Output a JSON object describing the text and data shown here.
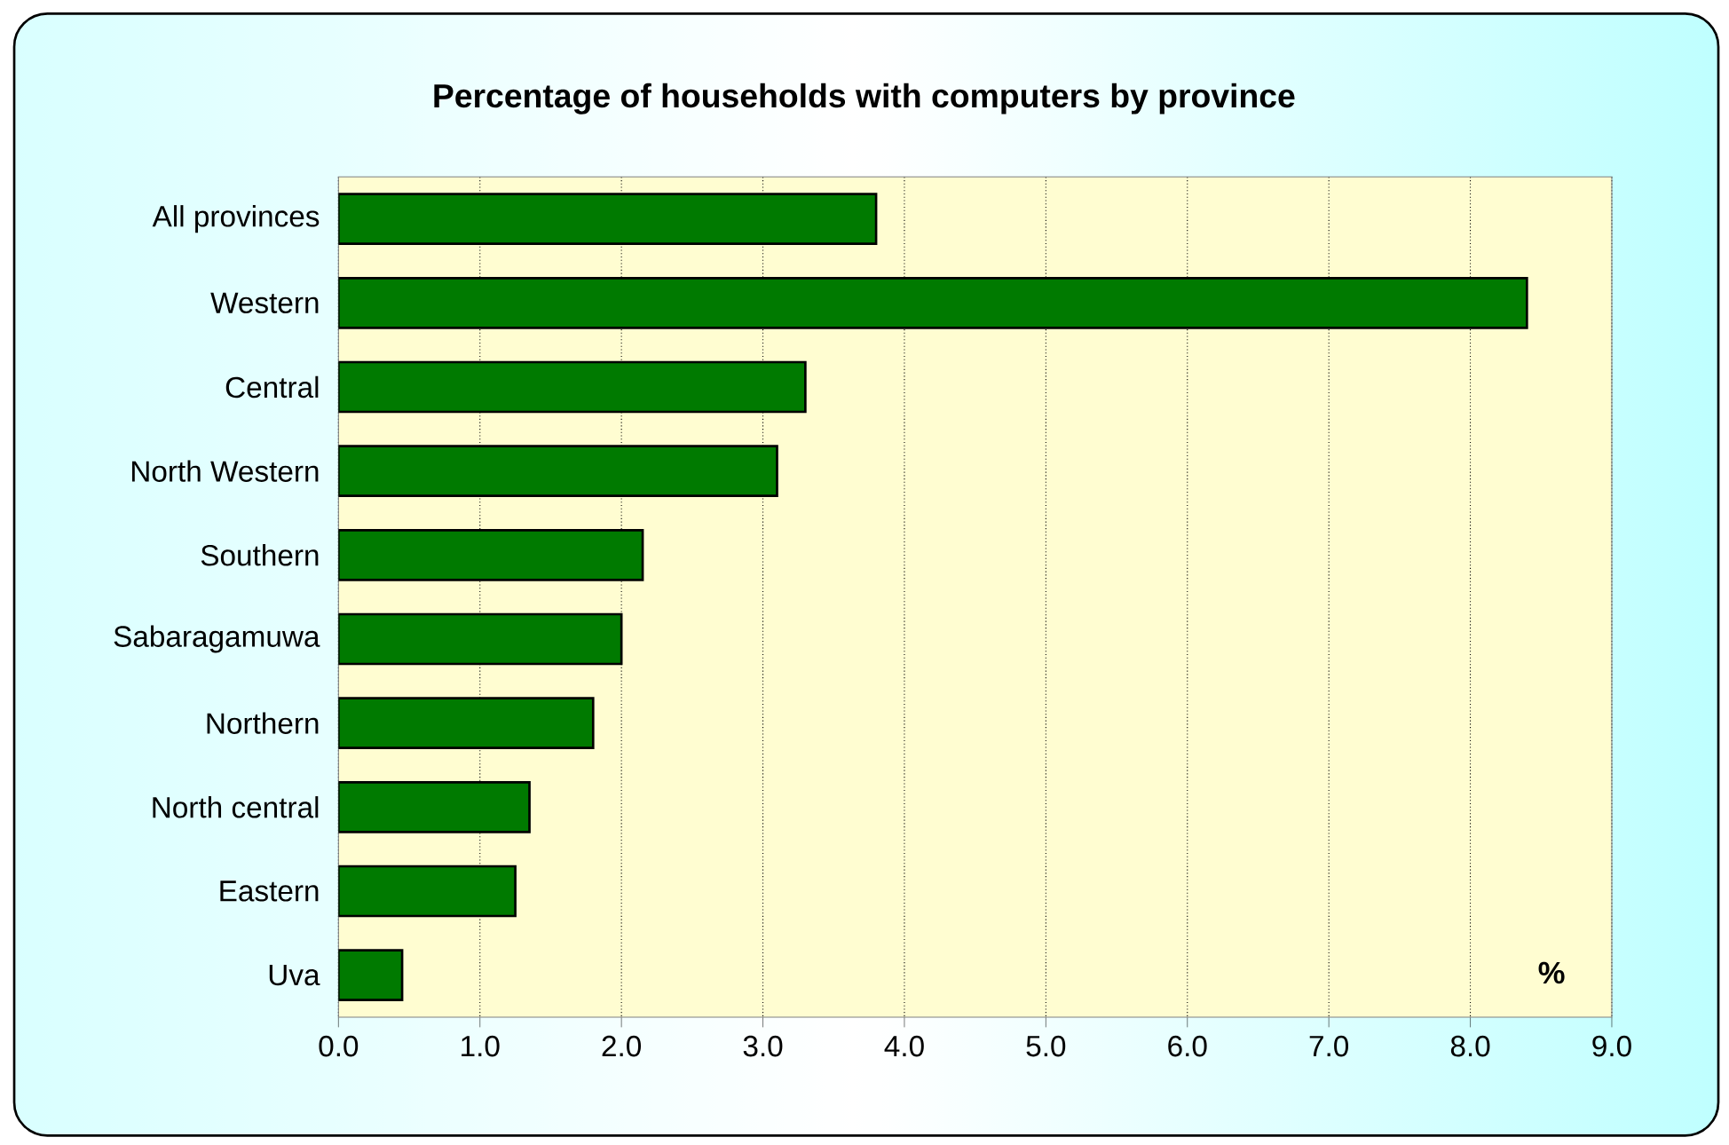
{
  "chart_data": {
    "type": "bar",
    "orientation": "horizontal",
    "title": "Percentage of households with computers  by province",
    "categories": [
      "All provinces",
      "Western",
      "Central",
      "North Western",
      "Southern",
      "Sabaragamuwa",
      "Northern",
      "North central",
      "Eastern",
      "Uva"
    ],
    "values": [
      3.8,
      8.4,
      3.3,
      3.1,
      2.15,
      2.0,
      1.8,
      1.35,
      1.25,
      0.45
    ],
    "color": "#007a00",
    "xlim": [
      0,
      9
    ],
    "xticks": [
      {
        "value": 0,
        "label": "0.0"
      },
      {
        "value": 1,
        "label": "1.0"
      },
      {
        "value": 2,
        "label": "2.0"
      },
      {
        "value": 3,
        "label": "3.0"
      },
      {
        "value": 4,
        "label": "4.0"
      },
      {
        "value": 5,
        "label": "5.0"
      },
      {
        "value": 6,
        "label": "6.0"
      },
      {
        "value": 7,
        "label": "7.0"
      },
      {
        "value": 8,
        "label": "8.0"
      },
      {
        "value": 9,
        "label": "9.0"
      }
    ],
    "grid": "x",
    "annotations": [
      "%"
    ]
  }
}
